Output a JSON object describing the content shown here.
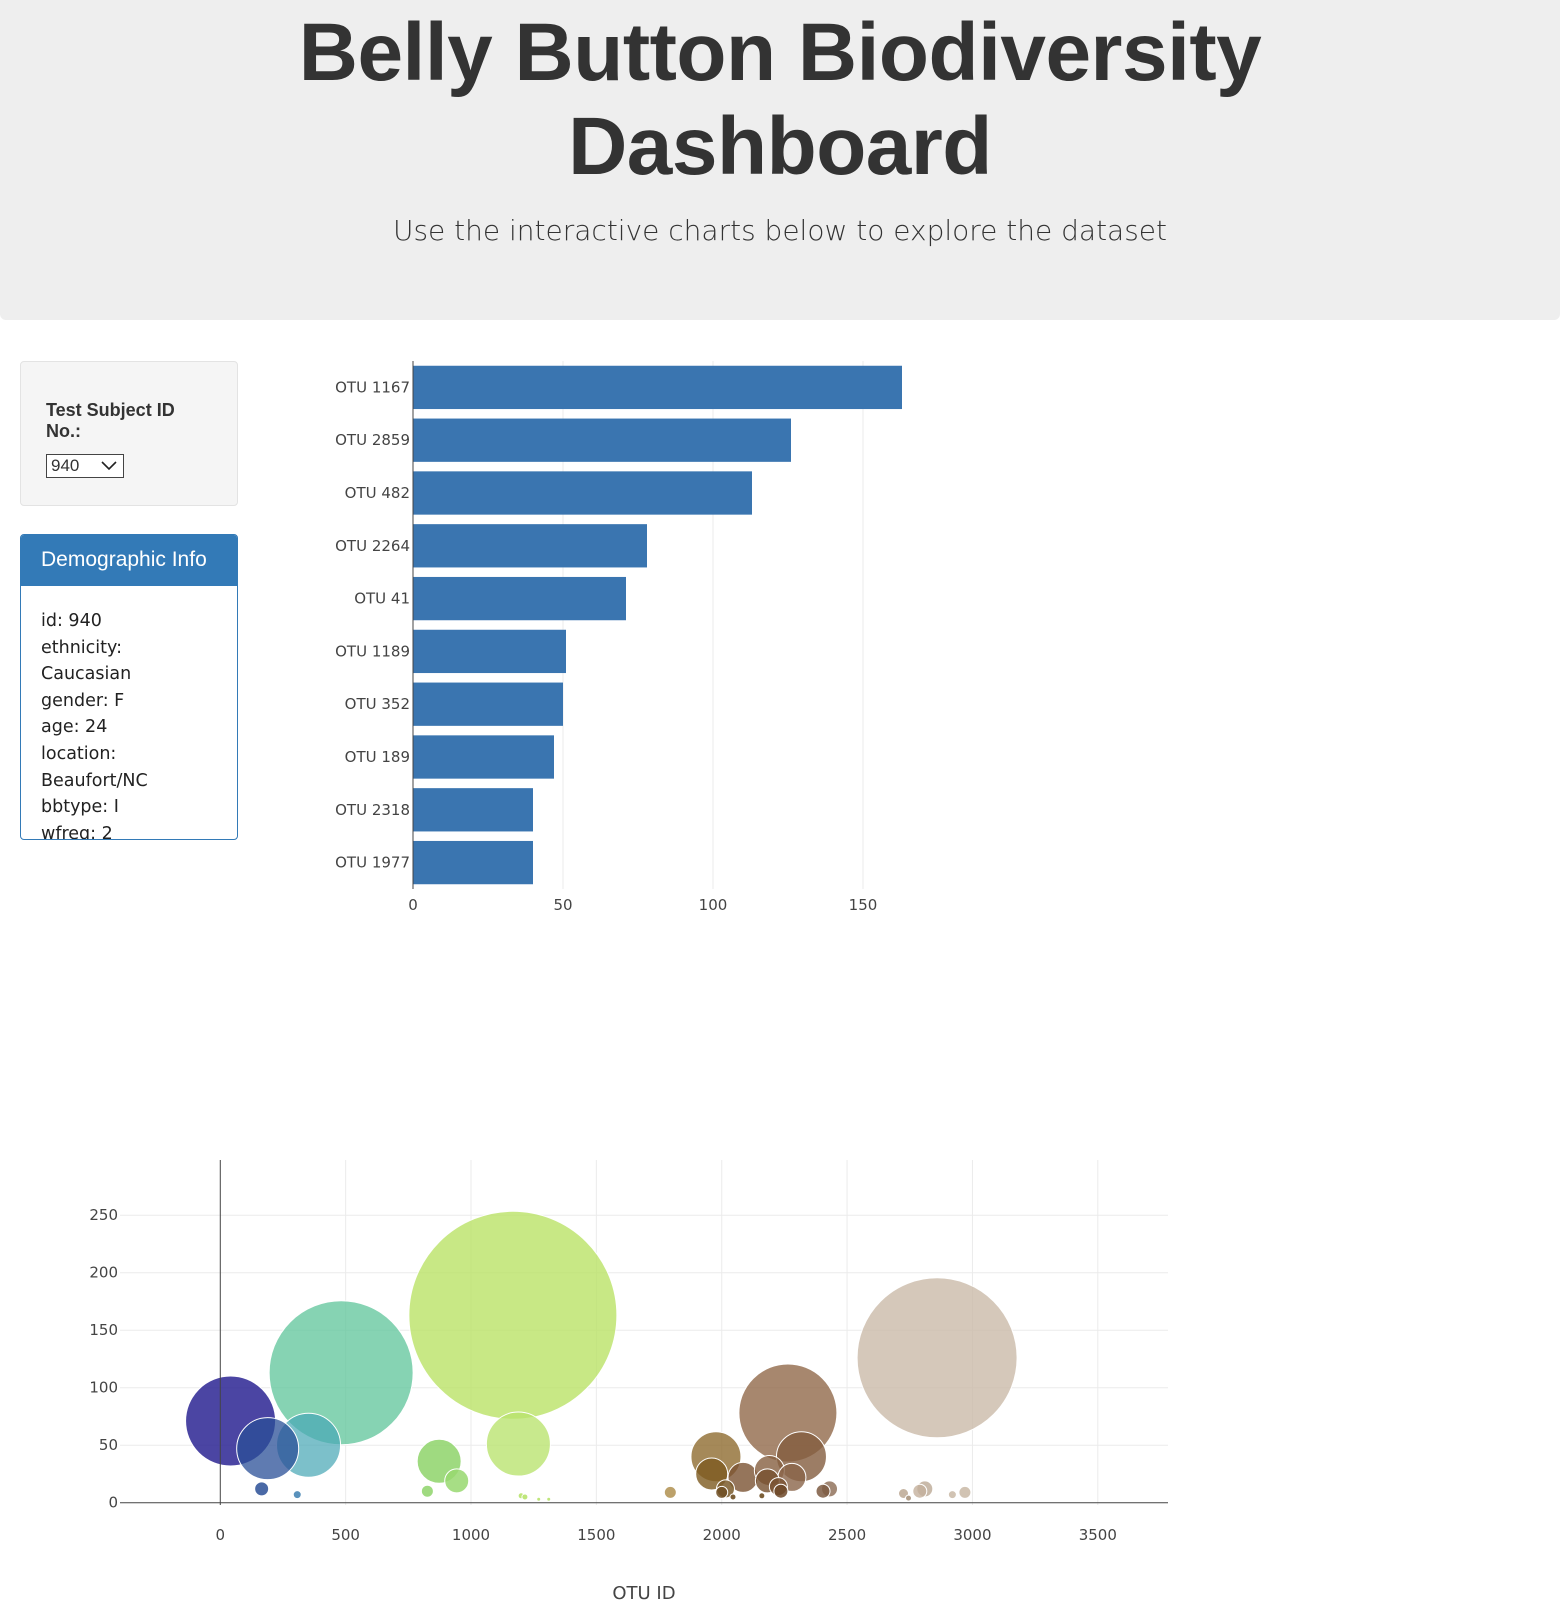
{
  "header": {
    "title_line1": "Belly Button Biodiversity",
    "title_line2": "Dashboard",
    "subtitle": "Use the interactive charts below to explore the dataset"
  },
  "selector": {
    "label": "Test Subject ID No.:",
    "selected": "940"
  },
  "demographics": {
    "heading": "Demographic Info",
    "lines": [
      "id: 940",
      "ethnicity: Caucasian",
      "gender: F",
      "age: 24",
      "location:",
      "Beaufort/NC",
      "bbtype: I",
      "wfreq: 2"
    ]
  },
  "chart_data": [
    {
      "type": "bar",
      "orientation": "horizontal",
      "categories": [
        "OTU 1167",
        "OTU 2859",
        "OTU 482",
        "OTU 2264",
        "OTU 41",
        "OTU 1189",
        "OTU 352",
        "OTU 189",
        "OTU 2318",
        "OTU 1977"
      ],
      "values": [
        163,
        126,
        113,
        78,
        71,
        51,
        50,
        47,
        40,
        40
      ],
      "xlim": [
        0,
        170
      ],
      "xticks": [
        0,
        50,
        100,
        150
      ],
      "color": "#3a75b0",
      "grid": true
    },
    {
      "type": "scatter",
      "xlabel": "OTU ID",
      "xlim": [
        -400,
        3780
      ],
      "ylim": [
        -2,
        298
      ],
      "xticks": [
        0,
        500,
        1000,
        1500,
        2000,
        2500,
        3000,
        3500
      ],
      "yticks": [
        0,
        50,
        100,
        150,
        200,
        250
      ],
      "grid": true,
      "points": [
        {
          "x": 41,
          "y": 71,
          "r": 45,
          "color": "#2b2593",
          "opacity": 0.85
        },
        {
          "x": 482,
          "y": 113,
          "r": 72,
          "color": "#5ec49a",
          "opacity": 0.75
        },
        {
          "x": 1167,
          "y": 163,
          "r": 104,
          "color": "#b9e163",
          "opacity": 0.78
        },
        {
          "x": 2859,
          "y": 126,
          "r": 80,
          "color": "#c9b9a6",
          "opacity": 0.78
        },
        {
          "x": 2264,
          "y": 78,
          "r": 49,
          "color": "#91694a",
          "opacity": 0.8
        },
        {
          "x": 189,
          "y": 47,
          "r": 31,
          "color": "#2a4f97",
          "opacity": 0.75
        },
        {
          "x": 352,
          "y": 50,
          "r": 32,
          "color": "#4aa8b5",
          "opacity": 0.72
        },
        {
          "x": 1189,
          "y": 51,
          "r": 32,
          "color": "#b8e36d",
          "opacity": 0.78
        },
        {
          "x": 2318,
          "y": 40,
          "r": 25,
          "color": "#835c3f",
          "opacity": 0.8
        },
        {
          "x": 1977,
          "y": 40,
          "r": 25,
          "color": "#8f6c30",
          "opacity": 0.8
        },
        {
          "x": 873,
          "y": 36,
          "r": 22,
          "color": "#8ed46a",
          "opacity": 0.85
        },
        {
          "x": 943,
          "y": 19,
          "r": 12,
          "color": "#98d870",
          "opacity": 0.85
        },
        {
          "x": 1960,
          "y": 25,
          "r": 16,
          "color": "#7d5a1f",
          "opacity": 0.8
        },
        {
          "x": 2085,
          "y": 22,
          "r": 15,
          "color": "#7b5332",
          "opacity": 0.8
        },
        {
          "x": 2190,
          "y": 28,
          "r": 15,
          "color": "#865f40",
          "opacity": 0.8
        },
        {
          "x": 2182,
          "y": 19,
          "r": 12,
          "color": "#76502e",
          "opacity": 0.8
        },
        {
          "x": 2280,
          "y": 22,
          "r": 14,
          "color": "#8a6448",
          "opacity": 0.8
        },
        {
          "x": 2226,
          "y": 14,
          "r": 9,
          "color": "#7a5334",
          "opacity": 0.85
        },
        {
          "x": 2236,
          "y": 10,
          "r": 7,
          "color": "#6d4828",
          "opacity": 0.85
        },
        {
          "x": 2015,
          "y": 12,
          "r": 9,
          "color": "#7a5a2a",
          "opacity": 0.85
        },
        {
          "x": 2000,
          "y": 9,
          "r": 6,
          "color": "#6e4e22",
          "opacity": 0.85
        },
        {
          "x": 2430,
          "y": 12,
          "r": 8,
          "color": "#8b6a52",
          "opacity": 0.8
        },
        {
          "x": 2404,
          "y": 10,
          "r": 7,
          "color": "#7d5b42",
          "opacity": 0.85
        },
        {
          "x": 1795,
          "y": 9,
          "r": 6,
          "color": "#b09050",
          "opacity": 0.85
        },
        {
          "x": 165,
          "y": 12,
          "r": 7,
          "color": "#2a4f97",
          "opacity": 0.85
        },
        {
          "x": 307,
          "y": 7,
          "r": 4,
          "color": "#3d7fb0",
          "opacity": 0.85
        },
        {
          "x": 826,
          "y": 10,
          "r": 6,
          "color": "#8ed46a",
          "opacity": 0.85
        },
        {
          "x": 2810,
          "y": 12,
          "r": 8,
          "color": "#bca995",
          "opacity": 0.8
        },
        {
          "x": 2790,
          "y": 10,
          "r": 7,
          "color": "#c4b09c",
          "opacity": 0.8
        },
        {
          "x": 2725,
          "y": 8,
          "r": 5,
          "color": "#b8a38c",
          "opacity": 0.8
        },
        {
          "x": 2745,
          "y": 4,
          "r": 3,
          "color": "#a58e76",
          "opacity": 0.85
        },
        {
          "x": 2970,
          "y": 9,
          "r": 6,
          "color": "#c9b9a6",
          "opacity": 0.85
        },
        {
          "x": 2920,
          "y": 7,
          "r": 4,
          "color": "#c9b9a6",
          "opacity": 0.85
        },
        {
          "x": 2045,
          "y": 5,
          "r": 3,
          "color": "#6e4e22",
          "opacity": 0.9
        },
        {
          "x": 2160,
          "y": 6,
          "r": 3,
          "color": "#6e4e22",
          "opacity": 0.9
        },
        {
          "x": 1200,
          "y": 6,
          "r": 3,
          "color": "#b8e36d",
          "opacity": 0.9
        },
        {
          "x": 1270,
          "y": 3,
          "r": 2,
          "color": "#b8e36d",
          "opacity": 0.9
        },
        {
          "x": 1310,
          "y": 3,
          "r": 2,
          "color": "#b8e36d",
          "opacity": 0.9
        },
        {
          "x": 1215,
          "y": 5,
          "r": 3,
          "color": "#b8e36d",
          "opacity": 0.9
        }
      ]
    }
  ]
}
